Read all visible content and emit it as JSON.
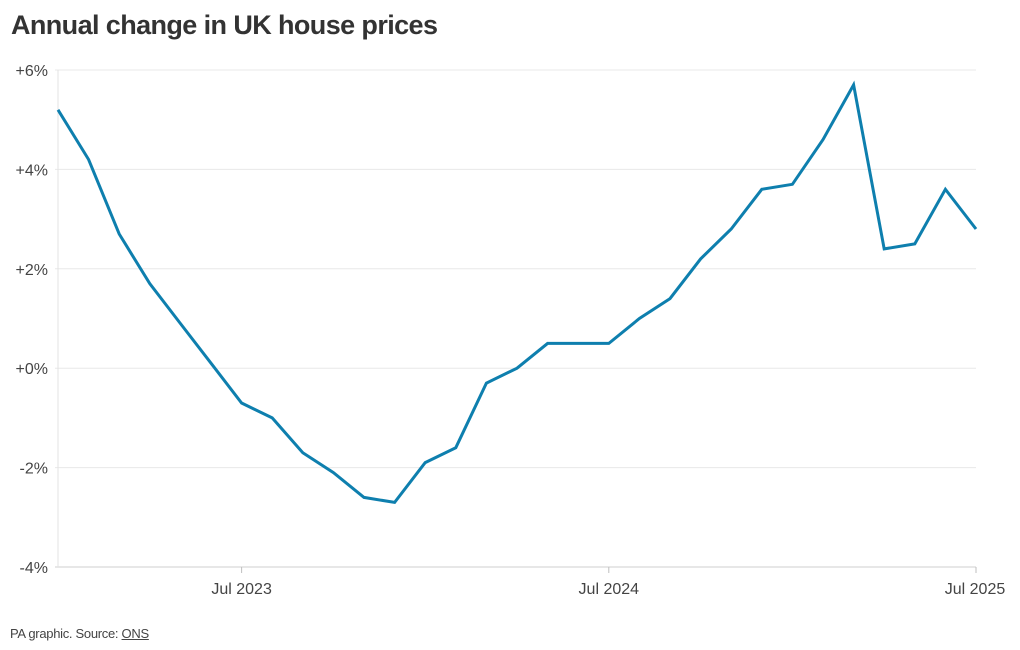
{
  "title": "Annual change in UK house prices",
  "footer": {
    "prefix": "PA graphic. Source: ",
    "source_link": "ONS"
  },
  "chart_data": {
    "type": "line",
    "title": "Annual change in UK house prices",
    "xlabel": "",
    "ylabel": "",
    "x": [
      "2023-01",
      "2023-02",
      "2023-03",
      "2023-04",
      "2023-05",
      "2023-06",
      "2023-07",
      "2023-08",
      "2023-09",
      "2023-10",
      "2023-11",
      "2023-12",
      "2024-01",
      "2024-02",
      "2024-03",
      "2024-04",
      "2024-05",
      "2024-06",
      "2024-07",
      "2024-08",
      "2024-09",
      "2024-10",
      "2024-11",
      "2024-12",
      "2025-01",
      "2025-02",
      "2025-03",
      "2025-04",
      "2025-05",
      "2025-06",
      "2025-07"
    ],
    "series": [
      {
        "values": [
          5.2,
          4.2,
          2.7,
          1.7,
          0.9,
          0.1,
          -0.7,
          -1.0,
          -1.7,
          -2.1,
          -2.6,
          -2.7,
          -1.9,
          -1.6,
          -0.3,
          0.0,
          0.5,
          0.5,
          0.5,
          1.0,
          1.4,
          2.2,
          2.8,
          3.6,
          3.7,
          4.6,
          5.7,
          2.4,
          2.5,
          3.6,
          2.8
        ],
        "color": "#0e7fae"
      }
    ],
    "ylim": [
      -4,
      6
    ],
    "yticks": [
      6,
      4,
      2,
      0,
      -2,
      -4
    ],
    "ytick_labels": [
      "+6%",
      "+4%",
      "+2%",
      "+0%",
      "-2%",
      "-4%"
    ],
    "xticks": [
      "2023-07",
      "2024-07",
      "2025-07"
    ],
    "xtick_labels": [
      "Jul 2023",
      "Jul 2024",
      "Jul 2025"
    ],
    "grid": true,
    "legend": "none"
  }
}
